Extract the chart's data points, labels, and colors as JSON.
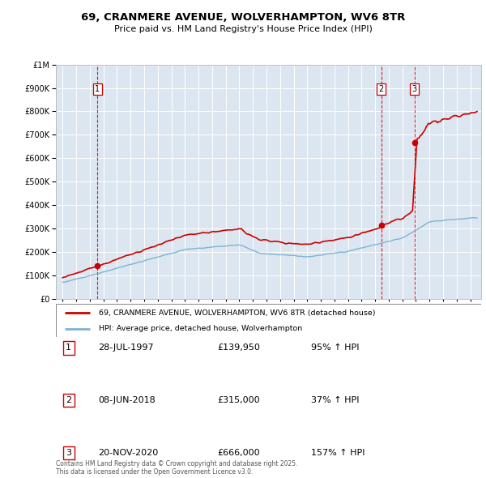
{
  "title_line1": "69, CRANMERE AVENUE, WOLVERHAMPTON, WV6 8TR",
  "title_line2": "Price paid vs. HM Land Registry's House Price Index (HPI)",
  "bg_color": "#dce6f1",
  "fig_bg_color": "#ffffff",
  "hpi_line_color": "#7fb3d3",
  "price_line_color": "#cc0000",
  "sale1_date_num": 1997.57,
  "sale1_price": 139950,
  "sale2_date_num": 2018.44,
  "sale2_price": 315000,
  "sale3_date_num": 2020.89,
  "sale3_price": 666000,
  "legend_label_price": "69, CRANMERE AVENUE, WOLVERHAMPTON, WV6 8TR (detached house)",
  "legend_label_hpi": "HPI: Average price, detached house, Wolverhampton",
  "footer_line1": "Contains HM Land Registry data © Crown copyright and database right 2025.",
  "footer_line2": "This data is licensed under the Open Government Licence v3.0.",
  "table_rows": [
    {
      "num": "1",
      "date": "28-JUL-1997",
      "price": "£139,950",
      "pct": "95% ↑ HPI"
    },
    {
      "num": "2",
      "date": "08-JUN-2018",
      "price": "£315,000",
      "pct": "37% ↑ HPI"
    },
    {
      "num": "3",
      "date": "20-NOV-2020",
      "price": "£666,000",
      "pct": "157% ↑ HPI"
    }
  ],
  "ylim_min": 0,
  "ylim_max": 1000000,
  "xlim_min": 1994.5,
  "xlim_max": 2025.8
}
